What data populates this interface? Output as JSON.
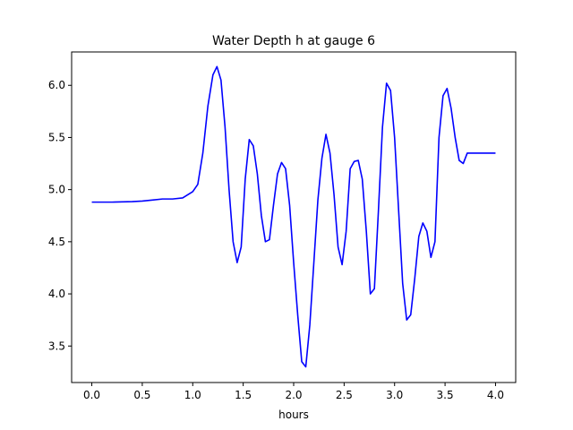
{
  "chart_data": {
    "type": "line",
    "title": "Water Depth h at gauge 6",
    "xlabel": "hours",
    "ylabel": "",
    "xlim": [
      -0.2,
      4.2
    ],
    "ylim": [
      3.15,
      6.32
    ],
    "xticks": [
      0.0,
      0.5,
      1.0,
      1.5,
      2.0,
      2.5,
      3.0,
      3.5,
      4.0
    ],
    "xtick_labels": [
      "0.0",
      "0.5",
      "1.0",
      "1.5",
      "2.0",
      "2.5",
      "3.0",
      "3.5",
      "4.0"
    ],
    "yticks": [
      3.5,
      4.0,
      4.5,
      5.0,
      5.5,
      6.0
    ],
    "ytick_labels": [
      "3.5",
      "4.0",
      "4.5",
      "5.0",
      "5.5",
      "6.0"
    ],
    "grid": false,
    "series": [
      {
        "color": "#0000ff",
        "x": [
          0.0,
          0.2,
          0.4,
          0.5,
          0.6,
          0.7,
          0.8,
          0.9,
          0.95,
          1.0,
          1.05,
          1.1,
          1.15,
          1.2,
          1.24,
          1.28,
          1.32,
          1.36,
          1.4,
          1.44,
          1.48,
          1.52,
          1.56,
          1.6,
          1.64,
          1.68,
          1.72,
          1.76,
          1.8,
          1.84,
          1.88,
          1.92,
          1.96,
          2.0,
          2.04,
          2.08,
          2.12,
          2.16,
          2.2,
          2.24,
          2.28,
          2.32,
          2.36,
          2.4,
          2.44,
          2.48,
          2.52,
          2.56,
          2.6,
          2.64,
          2.68,
          2.72,
          2.76,
          2.8,
          2.84,
          2.88,
          2.92,
          2.96,
          3.0,
          3.04,
          3.08,
          3.12,
          3.16,
          3.2,
          3.24,
          3.28,
          3.32,
          3.36,
          3.4,
          3.44,
          3.48,
          3.52,
          3.56,
          3.6,
          3.64,
          3.68,
          3.72,
          3.76,
          3.8,
          3.84,
          3.88,
          3.92,
          3.96,
          4.0
        ],
        "y": [
          4.88,
          4.88,
          4.885,
          4.89,
          4.9,
          4.91,
          4.91,
          4.92,
          4.95,
          4.98,
          5.05,
          5.35,
          5.8,
          6.1,
          6.18,
          6.05,
          5.6,
          5.0,
          4.5,
          4.3,
          4.45,
          5.1,
          5.48,
          5.42,
          5.15,
          4.75,
          4.5,
          4.52,
          4.85,
          5.15,
          5.26,
          5.2,
          4.85,
          4.3,
          3.8,
          3.35,
          3.3,
          3.7,
          4.3,
          4.9,
          5.3,
          5.53,
          5.35,
          4.95,
          4.45,
          4.28,
          4.6,
          5.2,
          5.27,
          5.28,
          5.1,
          4.6,
          4.0,
          4.05,
          4.8,
          5.6,
          6.02,
          5.95,
          5.5,
          4.8,
          4.1,
          3.75,
          3.8,
          4.15,
          4.55,
          4.68,
          4.6,
          4.35,
          4.5,
          5.5,
          5.9,
          5.97,
          5.78,
          5.5,
          5.28,
          5.25,
          5.35,
          5.35,
          5.35,
          5.35,
          5.35,
          5.35,
          5.35,
          5.35
        ]
      }
    ]
  }
}
